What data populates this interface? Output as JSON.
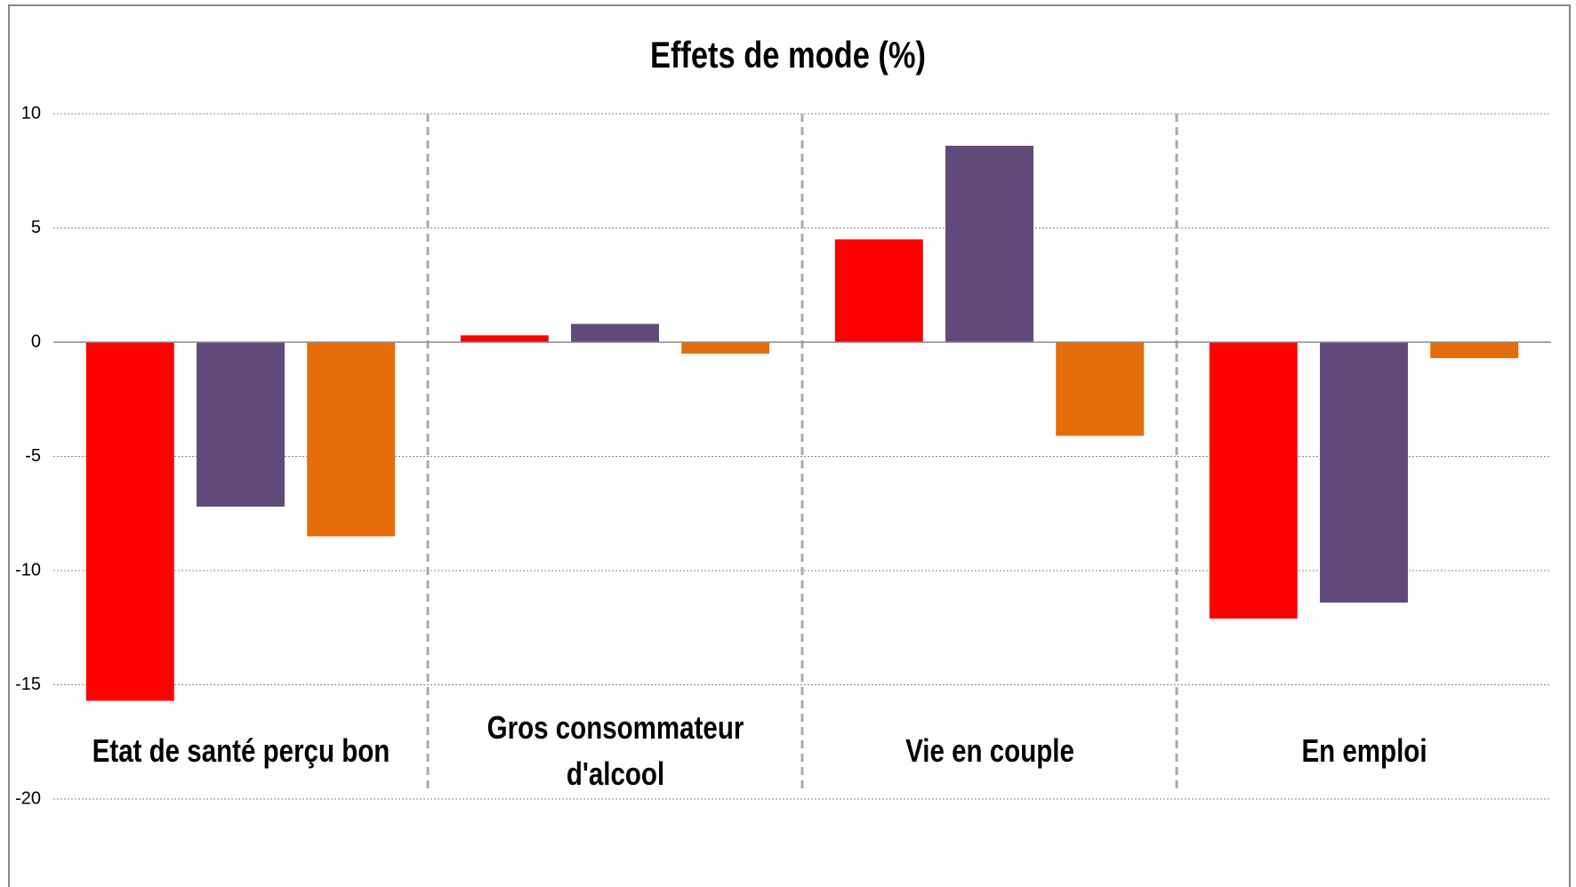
{
  "chart_data": {
    "type": "bar",
    "title": "Effets de mode (%)",
    "categories": [
      "Etat de santé perçu bon",
      "Gros consommateur d'alcool",
      "Vie en couple",
      "En emploi"
    ],
    "series": [
      {
        "color": "#ff0000",
        "values": [
          -15.7,
          0.3,
          4.5,
          -12.1
        ]
      },
      {
        "color": "#604a7b",
        "values": [
          -7.2,
          0.8,
          8.6,
          -11.4
        ]
      },
      {
        "color": "#e46c0a",
        "values": [
          -8.5,
          -0.5,
          -4.1,
          -0.7
        ]
      }
    ],
    "ylim": [
      -20,
      10
    ],
    "yticks": [
      -20,
      -15,
      -10,
      -5,
      0,
      5,
      10
    ],
    "grid": true
  }
}
